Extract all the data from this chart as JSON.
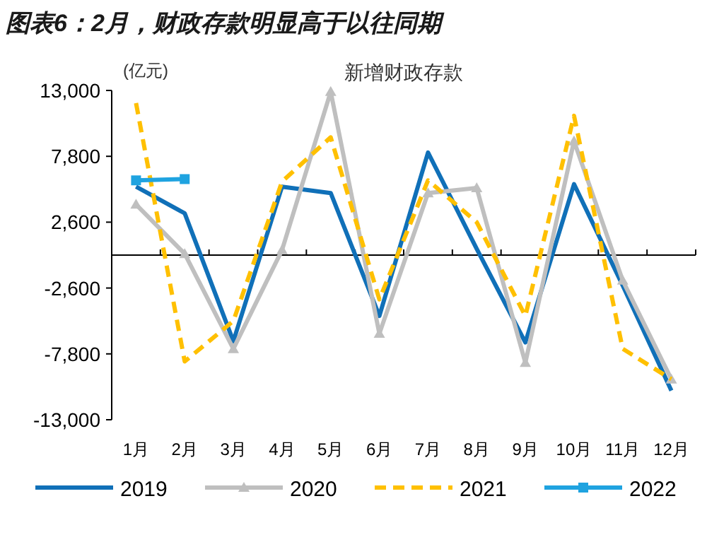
{
  "chart_data": {
    "type": "line",
    "title": "图表6：2月，财政存款明显高于以往同期",
    "subtitle": "新增财政存款",
    "ylabel": "(亿元)",
    "categories": [
      "1月",
      "2月",
      "3月",
      "4月",
      "5月",
      "6月",
      "7月",
      "8月",
      "9月",
      "10月",
      "11月",
      "12月"
    ],
    "ylim": [
      -13000,
      13000
    ],
    "yticks": [
      {
        "value": -13000,
        "label": "-13,000"
      },
      {
        "value": -7800,
        "label": "-7,800"
      },
      {
        "value": -2600,
        "label": "-2,600"
      },
      {
        "value": 2600,
        "label": "2,600"
      },
      {
        "value": 7800,
        "label": "7,800"
      },
      {
        "value": 13000,
        "label": "13,000"
      }
    ],
    "grid": false,
    "legend": "bottom",
    "series": [
      {
        "name": "2019",
        "color": "#1070b8",
        "marker": "none",
        "line_style": "solid",
        "values": [
          5400,
          3300,
          -6800,
          5400,
          4900,
          -4800,
          8100,
          500,
          -6900,
          5600,
          -2400,
          -10700
        ]
      },
      {
        "name": "2020",
        "color": "#bfbfbf",
        "marker": "triangle",
        "line_style": "solid",
        "values": [
          4000,
          100,
          -7400,
          400,
          12900,
          -6200,
          4900,
          5300,
          -8500,
          9000,
          -2000,
          -9800
        ]
      },
      {
        "name": "2021",
        "color": "#ffc000",
        "marker": "none",
        "line_style": "dashed",
        "values": [
          12000,
          -8400,
          -5200,
          5800,
          9300,
          -3500,
          5900,
          2600,
          -4800,
          11000,
          -7400,
          -9800
        ]
      },
      {
        "name": "2022",
        "color": "#1fa3e0",
        "marker": "square",
        "line_style": "solid",
        "values": [
          5900,
          6000,
          null,
          null,
          null,
          null,
          null,
          null,
          null,
          null,
          null,
          null
        ]
      }
    ]
  }
}
